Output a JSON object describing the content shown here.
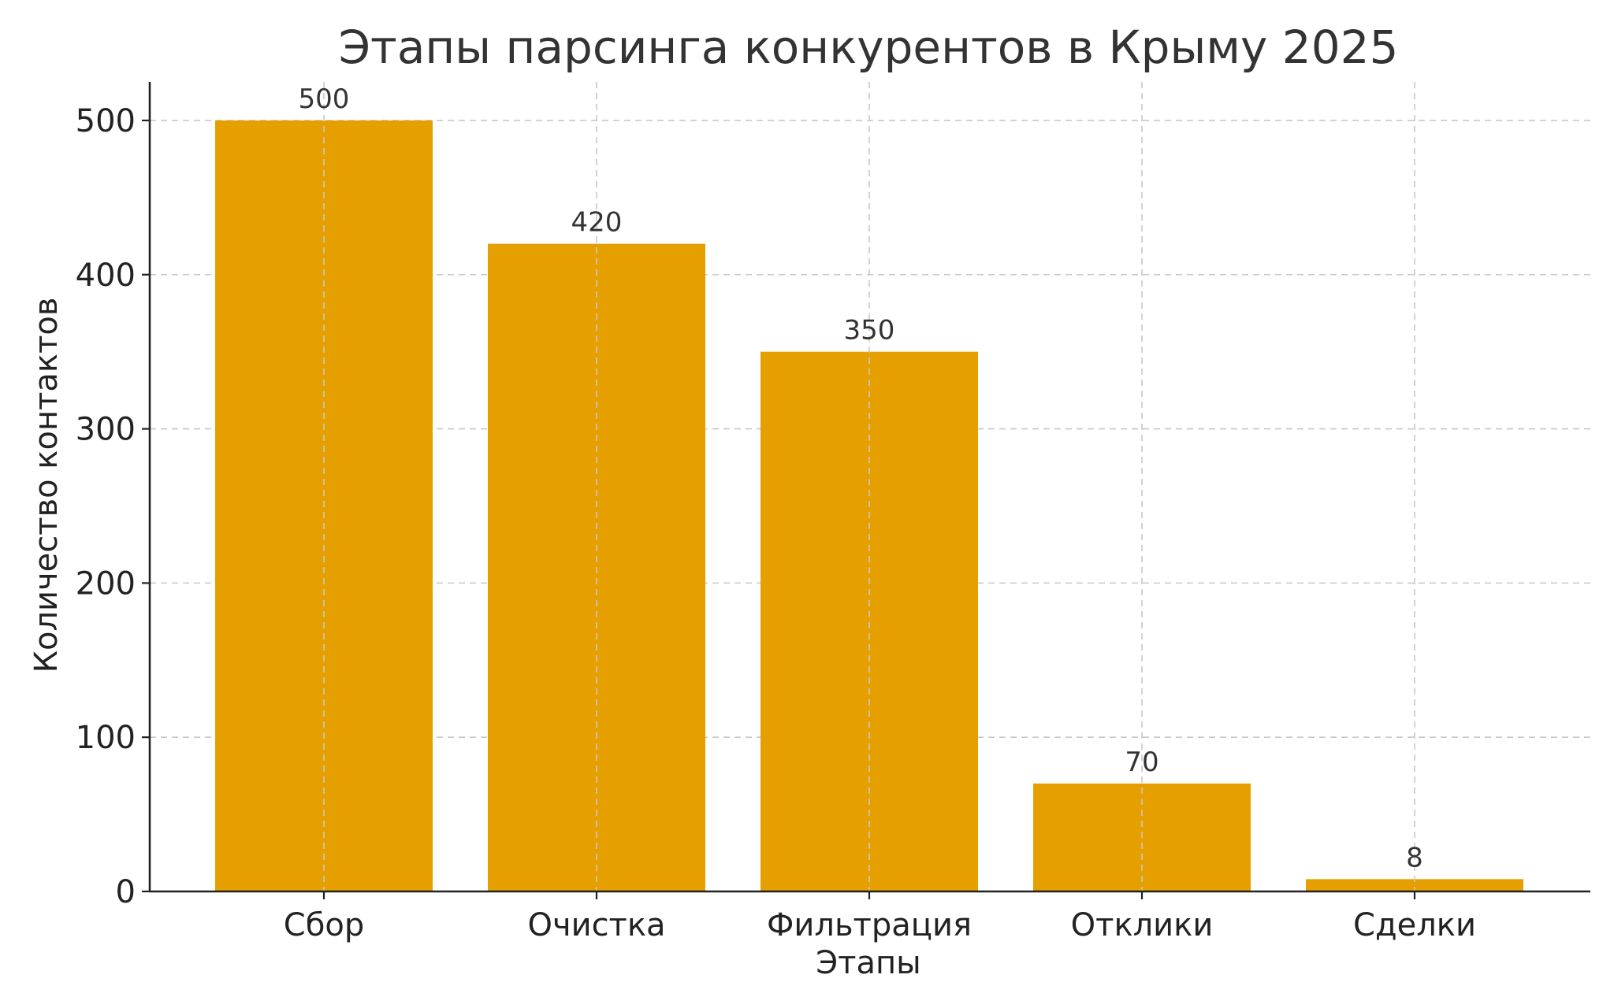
{
  "chart_data": {
    "type": "bar",
    "title": "Этапы парсинга конкурентов в Крыму 2025",
    "xlabel": "Этапы",
    "ylabel": "Количество контактов",
    "categories": [
      "Сбор",
      "Очистка",
      "Фильтрация",
      "Отклики",
      "Сделки"
    ],
    "values": [
      500,
      420,
      350,
      70,
      8
    ],
    "data_labels": [
      "500",
      "420",
      "350",
      "70",
      "8"
    ],
    "yticks": [
      0,
      100,
      200,
      300,
      400,
      500
    ],
    "ytick_labels": [
      "0",
      "100",
      "200",
      "300",
      "400",
      "500"
    ],
    "ylim": [
      0,
      525
    ],
    "grid": true,
    "bar_color": "#E5A000"
  }
}
